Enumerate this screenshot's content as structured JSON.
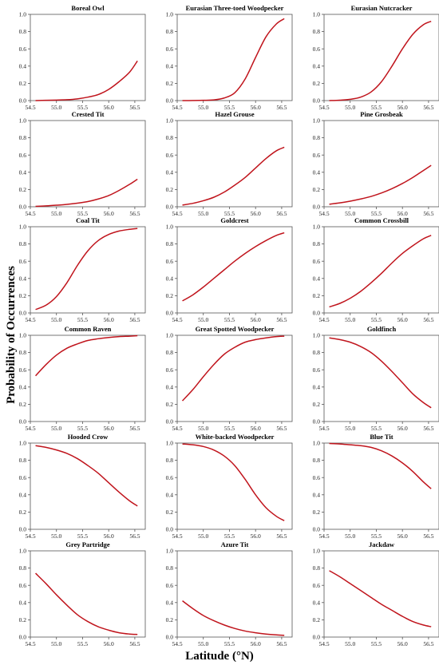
{
  "figure": {
    "ylabel": "Probability of Occurrences",
    "xlabel": "Latitude (°N)"
  },
  "chart_data": [
    {
      "type": "line",
      "title": "Boreal Owl",
      "xlim": [
        54.5,
        56.7
      ],
      "ylim": [
        0,
        1
      ],
      "xticks": [
        "54.5",
        "55.0",
        "55.5",
        "56.0",
        "56.5"
      ],
      "yticks": [
        "0.0",
        "0.2",
        "0.4",
        "0.6",
        "0.8",
        "1.0"
      ],
      "x": [
        54.6,
        54.8,
        55.0,
        55.2,
        55.4,
        55.6,
        55.8,
        56.0,
        56.2,
        56.4,
        56.55
      ],
      "series": [
        {
          "color": "#c0141c",
          "y": [
            0.0,
            0.003,
            0.006,
            0.01,
            0.02,
            0.04,
            0.07,
            0.13,
            0.22,
            0.33,
            0.46
          ]
        }
      ]
    },
    {
      "type": "line",
      "title": "Eurasian Three-toed Woodpecker",
      "xlim": [
        54.5,
        56.7
      ],
      "ylim": [
        0,
        1
      ],
      "xticks": [
        "54.5",
        "55.0",
        "55.5",
        "56.0",
        "56.5"
      ],
      "yticks": [
        "0.0",
        "0.2",
        "0.4",
        "0.6",
        "0.8",
        "1.0"
      ],
      "x": [
        54.6,
        54.8,
        55.0,
        55.2,
        55.4,
        55.6,
        55.8,
        56.0,
        56.2,
        56.4,
        56.55
      ],
      "series": [
        {
          "color": "#c0141c",
          "y": [
            0.0,
            0.001,
            0.003,
            0.008,
            0.03,
            0.09,
            0.25,
            0.5,
            0.74,
            0.89,
            0.95
          ]
        }
      ]
    },
    {
      "type": "line",
      "title": "Eurasian Nutcracker",
      "xlim": [
        54.5,
        56.7
      ],
      "ylim": [
        0,
        1
      ],
      "xticks": [
        "54.5",
        "55.0",
        "55.5",
        "56.0",
        "56.5"
      ],
      "yticks": [
        "0.0",
        "0.2",
        "0.4",
        "0.6",
        "0.8",
        "1.0"
      ],
      "x": [
        54.6,
        54.8,
        55.0,
        55.2,
        55.4,
        55.6,
        55.8,
        56.0,
        56.2,
        56.4,
        56.55
      ],
      "series": [
        {
          "color": "#c0141c",
          "y": [
            0.0,
            0.005,
            0.015,
            0.04,
            0.1,
            0.22,
            0.4,
            0.6,
            0.77,
            0.88,
            0.92
          ]
        }
      ]
    },
    {
      "type": "line",
      "title": "Crested Tit",
      "xlim": [
        54.5,
        56.7
      ],
      "ylim": [
        0,
        1
      ],
      "xticks": [
        "54.5",
        "55.0",
        "55.5",
        "56.0",
        "56.5"
      ],
      "yticks": [
        "0.0",
        "0.2",
        "0.4",
        "0.6",
        "0.8",
        "1.0"
      ],
      "x": [
        54.6,
        54.8,
        55.0,
        55.2,
        55.4,
        55.6,
        55.8,
        56.0,
        56.2,
        56.4,
        56.55
      ],
      "series": [
        {
          "color": "#c0141c",
          "y": [
            0.005,
            0.01,
            0.018,
            0.028,
            0.042,
            0.06,
            0.09,
            0.13,
            0.19,
            0.26,
            0.32
          ]
        }
      ]
    },
    {
      "type": "line",
      "title": "Hazel Grouse",
      "xlim": [
        54.5,
        56.7
      ],
      "ylim": [
        0,
        1
      ],
      "xticks": [
        "54.5",
        "55.0",
        "55.5",
        "56.0",
        "56.5"
      ],
      "yticks": [
        "0.0",
        "0.2",
        "0.4",
        "0.6",
        "0.8",
        "1.0"
      ],
      "x": [
        54.6,
        54.8,
        55.0,
        55.2,
        55.4,
        55.6,
        55.8,
        56.0,
        56.2,
        56.4,
        56.55
      ],
      "series": [
        {
          "color": "#c0141c",
          "y": [
            0.02,
            0.04,
            0.07,
            0.11,
            0.17,
            0.25,
            0.34,
            0.45,
            0.56,
            0.65,
            0.69
          ]
        }
      ]
    },
    {
      "type": "line",
      "title": "Pine Grosbeak",
      "xlim": [
        54.5,
        56.7
      ],
      "ylim": [
        0,
        1
      ],
      "xticks": [
        "54.5",
        "55.0",
        "55.5",
        "56.0",
        "56.5"
      ],
      "yticks": [
        "0.0",
        "0.2",
        "0.4",
        "0.6",
        "0.8",
        "1.0"
      ],
      "x": [
        54.6,
        54.8,
        55.0,
        55.2,
        55.4,
        55.6,
        55.8,
        56.0,
        56.2,
        56.4,
        56.55
      ],
      "series": [
        {
          "color": "#c0141c",
          "y": [
            0.03,
            0.045,
            0.065,
            0.09,
            0.12,
            0.16,
            0.21,
            0.27,
            0.34,
            0.42,
            0.48
          ]
        }
      ]
    },
    {
      "type": "line",
      "title": "Coal Tit",
      "xlim": [
        54.5,
        56.7
      ],
      "ylim": [
        0,
        1
      ],
      "xticks": [
        "54.5",
        "55.0",
        "55.5",
        "56.0",
        "56.5"
      ],
      "yticks": [
        "0.0",
        "0.2",
        "0.4",
        "0.6",
        "0.8",
        "1.0"
      ],
      "x": [
        54.6,
        54.8,
        55.0,
        55.2,
        55.4,
        55.6,
        55.8,
        56.0,
        56.2,
        56.4,
        56.55
      ],
      "series": [
        {
          "color": "#c0141c",
          "y": [
            0.04,
            0.09,
            0.19,
            0.35,
            0.55,
            0.72,
            0.84,
            0.91,
            0.95,
            0.97,
            0.98
          ]
        }
      ]
    },
    {
      "type": "line",
      "title": "Goldcrest",
      "xlim": [
        54.5,
        56.7
      ],
      "ylim": [
        0,
        1
      ],
      "xticks": [
        "54.5",
        "55.0",
        "55.5",
        "56.0",
        "56.5"
      ],
      "yticks": [
        "0.0",
        "0.2",
        "0.4",
        "0.6",
        "0.8",
        "1.0"
      ],
      "x": [
        54.6,
        54.8,
        55.0,
        55.2,
        55.4,
        55.6,
        55.8,
        56.0,
        56.2,
        56.4,
        56.55
      ],
      "series": [
        {
          "color": "#c0141c",
          "y": [
            0.14,
            0.21,
            0.3,
            0.4,
            0.5,
            0.6,
            0.69,
            0.77,
            0.84,
            0.9,
            0.93
          ]
        }
      ]
    },
    {
      "type": "line",
      "title": "Common Crossbill",
      "xlim": [
        54.5,
        56.7
      ],
      "ylim": [
        0,
        1
      ],
      "xticks": [
        "54.5",
        "55.0",
        "55.5",
        "56.0",
        "56.5"
      ],
      "yticks": [
        "0.0",
        "0.2",
        "0.4",
        "0.6",
        "0.8",
        "1.0"
      ],
      "x": [
        54.6,
        54.8,
        55.0,
        55.2,
        55.4,
        55.6,
        55.8,
        56.0,
        56.2,
        56.4,
        56.55
      ],
      "series": [
        {
          "color": "#c0141c",
          "y": [
            0.07,
            0.11,
            0.17,
            0.25,
            0.35,
            0.46,
            0.58,
            0.69,
            0.78,
            0.86,
            0.9
          ]
        }
      ]
    },
    {
      "type": "line",
      "title": "Common Raven",
      "xlim": [
        54.5,
        56.7
      ],
      "ylim": [
        0,
        1
      ],
      "xticks": [
        "54.5",
        "55.0",
        "55.5",
        "56.0",
        "56.5"
      ],
      "yticks": [
        "0.0",
        "0.2",
        "0.4",
        "0.6",
        "0.8",
        "1.0"
      ],
      "x": [
        54.6,
        54.8,
        55.0,
        55.2,
        55.4,
        55.6,
        55.8,
        56.0,
        56.2,
        56.4,
        56.55
      ],
      "series": [
        {
          "color": "#c0141c",
          "y": [
            0.53,
            0.66,
            0.77,
            0.85,
            0.9,
            0.94,
            0.96,
            0.975,
            0.985,
            0.99,
            0.995
          ]
        }
      ]
    },
    {
      "type": "line",
      "title": "Great Spotted Woodpecker",
      "xlim": [
        54.5,
        56.7
      ],
      "ylim": [
        0,
        1
      ],
      "xticks": [
        "54.5",
        "55.0",
        "55.5",
        "56.0",
        "56.5"
      ],
      "yticks": [
        "0.0",
        "0.2",
        "0.4",
        "0.6",
        "0.8",
        "1.0"
      ],
      "x": [
        54.6,
        54.8,
        55.0,
        55.2,
        55.4,
        55.6,
        55.8,
        56.0,
        56.2,
        56.4,
        56.55
      ],
      "series": [
        {
          "color": "#c0141c",
          "y": [
            0.24,
            0.37,
            0.52,
            0.66,
            0.78,
            0.86,
            0.92,
            0.95,
            0.97,
            0.985,
            0.99
          ]
        }
      ]
    },
    {
      "type": "line",
      "title": "Goldfinch",
      "xlim": [
        54.5,
        56.7
      ],
      "ylim": [
        0,
        1
      ],
      "xticks": [
        "54.5",
        "55.0",
        "55.5",
        "56.0",
        "56.5"
      ],
      "yticks": [
        "0.0",
        "0.2",
        "0.4",
        "0.6",
        "0.8",
        "1.0"
      ],
      "x": [
        54.6,
        54.8,
        55.0,
        55.2,
        55.4,
        55.6,
        55.8,
        56.0,
        56.2,
        56.4,
        56.55
      ],
      "series": [
        {
          "color": "#c0141c",
          "y": [
            0.97,
            0.95,
            0.92,
            0.87,
            0.8,
            0.7,
            0.58,
            0.45,
            0.32,
            0.22,
            0.16
          ]
        }
      ]
    },
    {
      "type": "line",
      "title": "Hooded Crow",
      "xlim": [
        54.5,
        56.7
      ],
      "ylim": [
        0,
        1
      ],
      "xticks": [
        "54.5",
        "55.0",
        "55.5",
        "56.0",
        "56.5"
      ],
      "yticks": [
        "0.0",
        "0.2",
        "0.4",
        "0.6",
        "0.8",
        "1.0"
      ],
      "x": [
        54.6,
        54.8,
        55.0,
        55.2,
        55.4,
        55.6,
        55.8,
        56.0,
        56.2,
        56.4,
        56.55
      ],
      "series": [
        {
          "color": "#c0141c",
          "y": [
            0.97,
            0.95,
            0.92,
            0.88,
            0.82,
            0.74,
            0.65,
            0.54,
            0.43,
            0.33,
            0.27
          ]
        }
      ]
    },
    {
      "type": "line",
      "title": "White-backed Woodpecker",
      "xlim": [
        54.5,
        56.7
      ],
      "ylim": [
        0,
        1
      ],
      "xticks": [
        "54.5",
        "55.0",
        "55.5",
        "56.0",
        "56.5"
      ],
      "yticks": [
        "0.0",
        "0.2",
        "0.4",
        "0.6",
        "0.8",
        "1.0"
      ],
      "x": [
        54.6,
        54.8,
        55.0,
        55.2,
        55.4,
        55.6,
        55.8,
        56.0,
        56.2,
        56.4,
        56.55
      ],
      "series": [
        {
          "color": "#c0141c",
          "y": [
            0.99,
            0.98,
            0.96,
            0.92,
            0.85,
            0.74,
            0.58,
            0.4,
            0.25,
            0.15,
            0.1
          ]
        }
      ]
    },
    {
      "type": "line",
      "title": "Blue Tit",
      "xlim": [
        54.5,
        56.7
      ],
      "ylim": [
        0,
        1
      ],
      "xticks": [
        "54.5",
        "55.0",
        "55.5",
        "56.0",
        "56.5"
      ],
      "yticks": [
        "0.0",
        "0.2",
        "0.4",
        "0.6",
        "0.8",
        "1.0"
      ],
      "x": [
        54.6,
        54.8,
        55.0,
        55.2,
        55.4,
        55.6,
        55.8,
        56.0,
        56.2,
        56.4,
        56.55
      ],
      "series": [
        {
          "color": "#c0141c",
          "y": [
            0.995,
            0.99,
            0.98,
            0.97,
            0.95,
            0.91,
            0.85,
            0.77,
            0.67,
            0.55,
            0.47
          ]
        }
      ]
    },
    {
      "type": "line",
      "title": "Grey Partridge",
      "xlim": [
        54.5,
        56.7
      ],
      "ylim": [
        0,
        1
      ],
      "xticks": [
        "54.5",
        "55.0",
        "55.5",
        "56.0",
        "56.5"
      ],
      "yticks": [
        "0.0",
        "0.2",
        "0.4",
        "0.6",
        "0.8",
        "1.0"
      ],
      "x": [
        54.6,
        54.8,
        55.0,
        55.2,
        55.4,
        55.6,
        55.8,
        56.0,
        56.2,
        56.4,
        56.55
      ],
      "series": [
        {
          "color": "#c0141c",
          "y": [
            0.74,
            0.62,
            0.49,
            0.37,
            0.26,
            0.18,
            0.12,
            0.08,
            0.05,
            0.035,
            0.03
          ]
        }
      ]
    },
    {
      "type": "line",
      "title": "Azure Tit",
      "xlim": [
        54.5,
        56.7
      ],
      "ylim": [
        0,
        1
      ],
      "xticks": [
        "54.5",
        "55.0",
        "55.5",
        "56.0",
        "56.5"
      ],
      "yticks": [
        "0.0",
        "0.2",
        "0.4",
        "0.6",
        "0.8",
        "1.0"
      ],
      "x": [
        54.6,
        54.8,
        55.0,
        55.2,
        55.4,
        55.6,
        55.8,
        56.0,
        56.2,
        56.4,
        56.55
      ],
      "series": [
        {
          "color": "#c0141c",
          "y": [
            0.42,
            0.33,
            0.25,
            0.19,
            0.14,
            0.1,
            0.07,
            0.05,
            0.035,
            0.025,
            0.02
          ]
        }
      ]
    },
    {
      "type": "line",
      "title": "Jackdaw",
      "xlim": [
        54.5,
        56.7
      ],
      "ylim": [
        0,
        1
      ],
      "xticks": [
        "54.5",
        "55.0",
        "55.5",
        "56.0",
        "56.5"
      ],
      "yticks": [
        "0.0",
        "0.2",
        "0.4",
        "0.6",
        "0.8",
        "1.0"
      ],
      "x": [
        54.6,
        54.8,
        55.0,
        55.2,
        55.4,
        55.6,
        55.8,
        56.0,
        56.2,
        56.4,
        56.55
      ],
      "series": [
        {
          "color": "#c0141c",
          "y": [
            0.77,
            0.7,
            0.62,
            0.54,
            0.46,
            0.38,
            0.31,
            0.24,
            0.18,
            0.14,
            0.12
          ]
        }
      ]
    }
  ]
}
